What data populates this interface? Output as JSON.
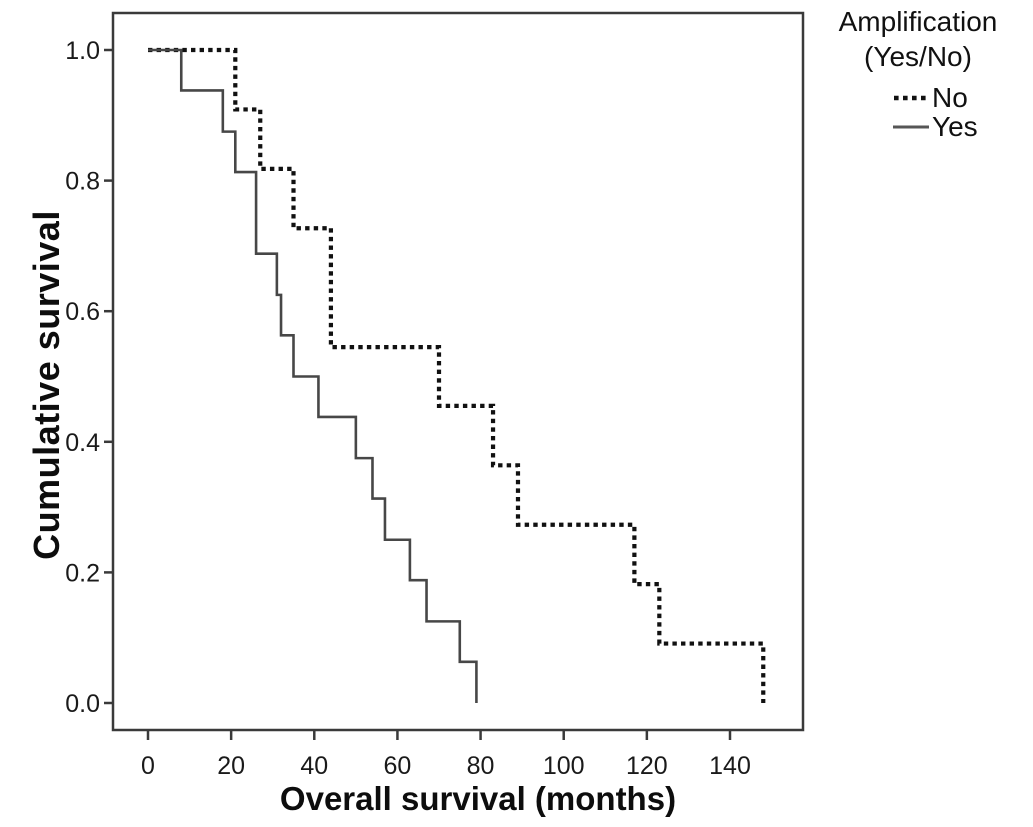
{
  "legend": {
    "title_line1": "Amplification",
    "title_line2": "(Yes/No)",
    "items": [
      {
        "label": "No",
        "style": "dotted"
      },
      {
        "label": "Yes",
        "style": "solid"
      }
    ]
  },
  "colors": {
    "dotted_series": "#111111",
    "solid_series": "#474747",
    "axis": "#3a3a3a",
    "tick_text": "#1a1a1a"
  },
  "chart_data": {
    "type": "line",
    "subtype": "kaplan-meier-step",
    "title": "",
    "xlabel": "Overall survival (months)",
    "ylabel": "Cumulative survival",
    "xlim": [
      0,
      157
    ],
    "ylim": [
      0,
      1.06
    ],
    "x_ticks": [
      0,
      20,
      40,
      60,
      80,
      100,
      120,
      140
    ],
    "y_ticks": [
      0.0,
      0.2,
      0.4,
      0.6,
      0.8,
      1.0
    ],
    "grid": false,
    "legend_position": "top-right",
    "series": [
      {
        "name": "No",
        "line": "dotted",
        "color": "#111111",
        "steps": [
          [
            0,
            1.0
          ],
          [
            21,
            0.909
          ],
          [
            27,
            0.818
          ],
          [
            35,
            0.727
          ],
          [
            44,
            0.545
          ],
          [
            70,
            0.455
          ],
          [
            83,
            0.364
          ],
          [
            89,
            0.273
          ],
          [
            117,
            0.182
          ],
          [
            123,
            0.091
          ],
          [
            148,
            0.0
          ]
        ]
      },
      {
        "name": "Yes",
        "line": "solid",
        "color": "#474747",
        "steps": [
          [
            0,
            1.0
          ],
          [
            8,
            0.938
          ],
          [
            18,
            0.875
          ],
          [
            21,
            0.813
          ],
          [
            26,
            0.688
          ],
          [
            31,
            0.625
          ],
          [
            32,
            0.563
          ],
          [
            35,
            0.5
          ],
          [
            41,
            0.438
          ],
          [
            50,
            0.375
          ],
          [
            54,
            0.313
          ],
          [
            57,
            0.25
          ],
          [
            63,
            0.188
          ],
          [
            67,
            0.125
          ],
          [
            75,
            0.063
          ],
          [
            79,
            0.0
          ]
        ]
      }
    ]
  }
}
